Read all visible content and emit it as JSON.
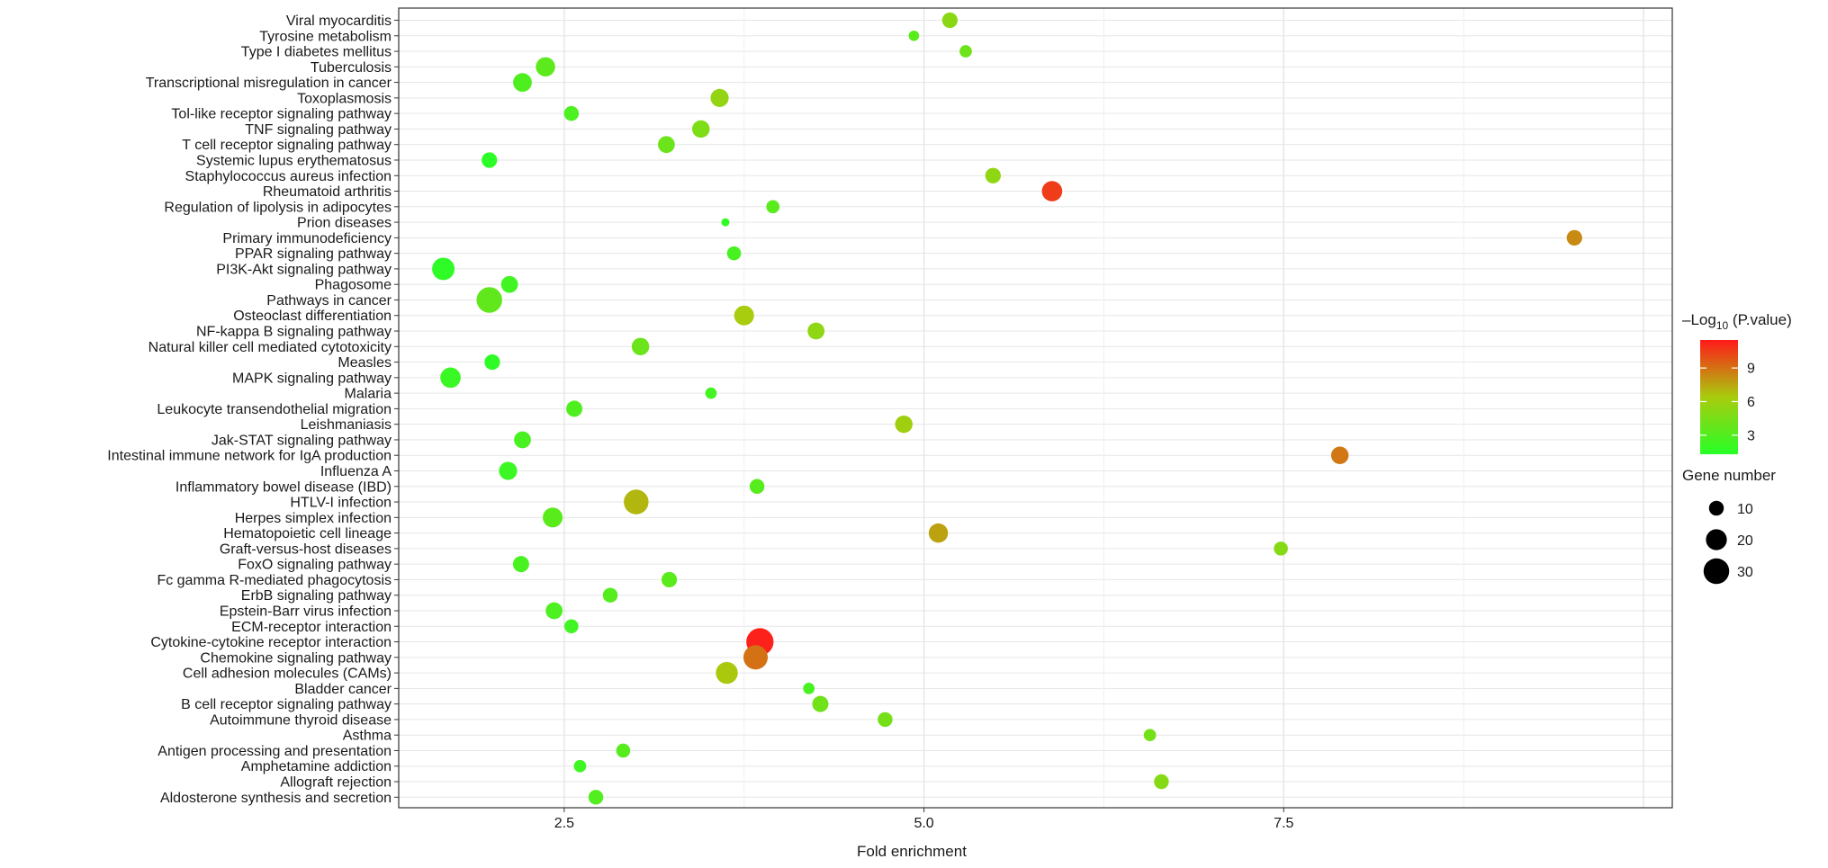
{
  "chart_data": {
    "type": "scatter",
    "title": "",
    "xlabel": "Fold enrichment",
    "ylabel": "",
    "xlim": [
      1.35,
      10.2
    ],
    "xticks": [
      2.5,
      5.0,
      7.5
    ],
    "xtick_labels": [
      "2.5",
      "5.0",
      "7.5"
    ],
    "grid": true,
    "legend_position": "right",
    "color_legend": {
      "title": "–Log",
      "title_sub": "10",
      "title_rest": " (P.value)",
      "ticks": [
        3,
        6,
        9
      ],
      "range": [
        1.3,
        11.5
      ],
      "low_color": "#27ff27",
      "mid_color": "#a8cc0e",
      "high_color": "#ff1a1a"
    },
    "size_legend": {
      "title": "Gene number",
      "values": [
        10,
        20,
        30
      ]
    },
    "points": [
      {
        "pathway": "Viral myocarditis",
        "fold": 5.18,
        "neglog10p": 5.2,
        "genes": 11
      },
      {
        "pathway": "Tyrosine metabolism",
        "fold": 4.93,
        "neglog10p": 3.3,
        "genes": 5
      },
      {
        "pathway": "Type I diabetes mellitus",
        "fold": 5.29,
        "neglog10p": 4.1,
        "genes": 7
      },
      {
        "pathway": "Tuberculosis",
        "fold": 2.37,
        "neglog10p": 3.4,
        "genes": 17
      },
      {
        "pathway": "Transcriptional misregulation in cancer",
        "fold": 2.21,
        "neglog10p": 2.9,
        "genes": 16
      },
      {
        "pathway": "Toxoplasmosis",
        "fold": 3.58,
        "neglog10p": 5.6,
        "genes": 15
      },
      {
        "pathway": "Tol-like receptor signaling pathway",
        "fold": 2.55,
        "neglog10p": 2.8,
        "genes": 10
      },
      {
        "pathway": "TNF signaling pathway",
        "fold": 3.45,
        "neglog10p": 4.7,
        "genes": 14
      },
      {
        "pathway": "T cell receptor signaling pathway",
        "fold": 3.21,
        "neglog10p": 4.0,
        "genes": 13
      },
      {
        "pathway": "Systemic lupus erythematosus",
        "fold": 1.98,
        "neglog10p": 1.5,
        "genes": 11
      },
      {
        "pathway": "Staphylococcus aureus infection",
        "fold": 5.48,
        "neglog10p": 5.4,
        "genes": 11
      },
      {
        "pathway": "Rheumatoid arthritis",
        "fold": 5.89,
        "neglog10p": 10.5,
        "genes": 19
      },
      {
        "pathway": "Regulation of lipolysis in adipocytes",
        "fold": 3.95,
        "neglog10p": 3.3,
        "genes": 8
      },
      {
        "pathway": "Prion diseases",
        "fold": 3.62,
        "neglog10p": 1.7,
        "genes": 3
      },
      {
        "pathway": "Primary immunodeficiency",
        "fold": 9.52,
        "neglog10p": 8.3,
        "genes": 11
      },
      {
        "pathway": "PPAR signaling pathway",
        "fold": 3.68,
        "neglog10p": 2.6,
        "genes": 9
      },
      {
        "pathway": "PI3K-Akt signaling pathway",
        "fold": 1.66,
        "neglog10p": 1.6,
        "genes": 23
      },
      {
        "pathway": "Phagosome",
        "fold": 2.12,
        "neglog10p": 2.3,
        "genes": 13
      },
      {
        "pathway": "Pathways in cancer",
        "fold": 1.98,
        "neglog10p": 3.6,
        "genes": 30
      },
      {
        "pathway": "Osteoclast differentiation",
        "fold": 3.75,
        "neglog10p": 6.4,
        "genes": 18
      },
      {
        "pathway": "NF-kappa B signaling pathway",
        "fold": 4.25,
        "neglog10p": 5.4,
        "genes": 13
      },
      {
        "pathway": "Natural killer cell mediated cytotoxicity",
        "fold": 3.03,
        "neglog10p": 4.0,
        "genes": 14
      },
      {
        "pathway": "Measles",
        "fold": 2.0,
        "neglog10p": 1.6,
        "genes": 11
      },
      {
        "pathway": "MAPK signaling pathway",
        "fold": 1.71,
        "neglog10p": 2.0,
        "genes": 19
      },
      {
        "pathway": "Malaria",
        "fold": 3.52,
        "neglog10p": 2.4,
        "genes": 6
      },
      {
        "pathway": "Leukocyte transendothelial migration",
        "fold": 2.57,
        "neglog10p": 2.9,
        "genes": 12
      },
      {
        "pathway": "Leishmaniasis",
        "fold": 4.86,
        "neglog10p": 6.1,
        "genes": 14
      },
      {
        "pathway": "Jak-STAT signaling pathway",
        "fold": 2.21,
        "neglog10p": 2.7,
        "genes": 13
      },
      {
        "pathway": "Intestinal immune network for IgA production",
        "fold": 7.89,
        "neglog10p": 8.8,
        "genes": 14
      },
      {
        "pathway": "Influenza A",
        "fold": 2.11,
        "neglog10p": 2.1,
        "genes": 15
      },
      {
        "pathway": "Inflammatory bowel disease (IBD)",
        "fold": 3.84,
        "neglog10p": 3.2,
        "genes": 10
      },
      {
        "pathway": "HTLV-I infection",
        "fold": 3.0,
        "neglog10p": 7.0,
        "genes": 28
      },
      {
        "pathway": "Herpes simplex infection",
        "fold": 2.42,
        "neglog10p": 3.3,
        "genes": 18
      },
      {
        "pathway": "Hematopoietic cell lineage",
        "fold": 5.1,
        "neglog10p": 7.6,
        "genes": 17
      },
      {
        "pathway": "Graft-versus-host diseases",
        "fold": 7.48,
        "neglog10p": 5.0,
        "genes": 9
      },
      {
        "pathway": "FoxO signaling pathway",
        "fold": 2.2,
        "neglog10p": 2.6,
        "genes": 12
      },
      {
        "pathway": "Fc gamma R-mediated phagocytosis",
        "fold": 3.23,
        "neglog10p": 3.3,
        "genes": 11
      },
      {
        "pathway": "ErbB signaling pathway",
        "fold": 2.82,
        "neglog10p": 3.1,
        "genes": 10
      },
      {
        "pathway": "Epstein-Barr virus infection",
        "fold": 2.43,
        "neglog10p": 2.8,
        "genes": 13
      },
      {
        "pathway": "ECM-receptor interaction",
        "fold": 2.55,
        "neglog10p": 2.3,
        "genes": 9
      },
      {
        "pathway": "Cytokine-cytokine receptor interaction",
        "fold": 3.86,
        "neglog10p": 11.3,
        "genes": 34
      },
      {
        "pathway": "Chemokine signaling pathway",
        "fold": 3.83,
        "neglog10p": 9.0,
        "genes": 27
      },
      {
        "pathway": "Cell adhesion molecules (CAMs)",
        "fold": 3.63,
        "neglog10p": 6.5,
        "genes": 22
      },
      {
        "pathway": "Bladder cancer",
        "fold": 4.2,
        "neglog10p": 2.6,
        "genes": 6
      },
      {
        "pathway": "B cell receptor signaling pathway",
        "fold": 4.28,
        "neglog10p": 4.2,
        "genes": 12
      },
      {
        "pathway": "Autoimmune thyroid disease",
        "fold": 4.73,
        "neglog10p": 4.4,
        "genes": 10
      },
      {
        "pathway": "Asthma",
        "fold": 6.57,
        "neglog10p": 4.3,
        "genes": 7
      },
      {
        "pathway": "Antigen processing and presentation",
        "fold": 2.91,
        "neglog10p": 3.2,
        "genes": 9
      },
      {
        "pathway": "Amphetamine addiction",
        "fold": 2.61,
        "neglog10p": 2.2,
        "genes": 7
      },
      {
        "pathway": "Allograft rejection",
        "fold": 6.65,
        "neglog10p": 5.0,
        "genes": 10
      },
      {
        "pathway": "Aldosterone synthesis and secretion",
        "fold": 2.72,
        "neglog10p": 3.0,
        "genes": 10
      }
    ]
  }
}
